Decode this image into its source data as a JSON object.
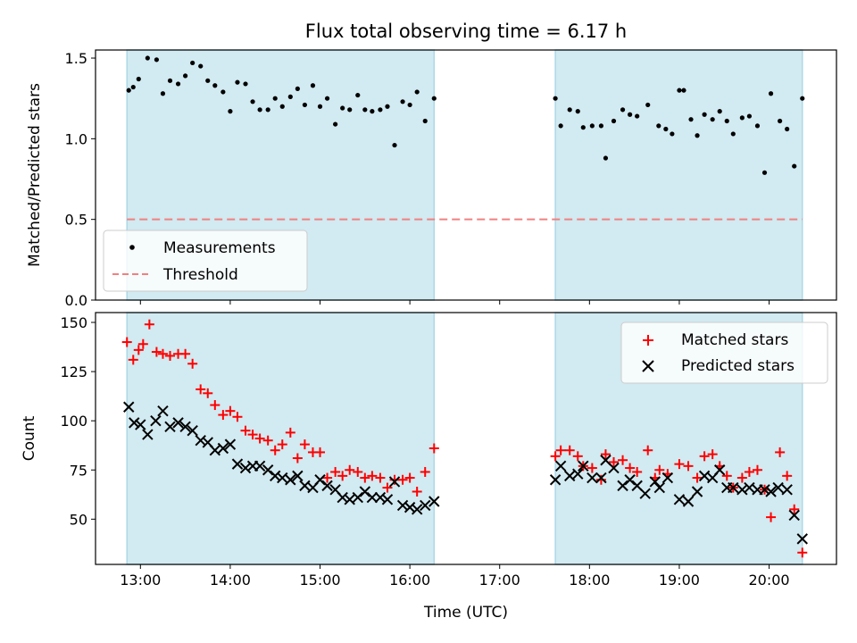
{
  "chart_data": {
    "title": "Flux total observing time = 6.17 h",
    "xlabel": "Time (UTC)",
    "x_unit": "hours UTC",
    "xlim": [
      12.5,
      20.75
    ],
    "x_tick_values": [
      13,
      14,
      15,
      16,
      17,
      18,
      19,
      20
    ],
    "x_tick_labels": [
      "13:00",
      "14:00",
      "15:00",
      "16:00",
      "17:00",
      "18:00",
      "19:00",
      "20:00"
    ],
    "observing_windows": [
      [
        12.85,
        16.27
      ],
      [
        17.62,
        20.37
      ]
    ],
    "window_color": "#add8e6",
    "panels": [
      {
        "type": "scatter",
        "ylabel": "Matched/Predicted stars",
        "ylim": [
          0,
          1.55
        ],
        "y_tick_values": [
          0,
          0.5,
          1.0,
          1.5
        ],
        "y_tick_labels": [
          "0.0",
          "0.5",
          "1.0",
          "1.5"
        ],
        "legend_position": "lower-left",
        "threshold": {
          "name": "Threshold",
          "value": 0.5,
          "color": "#f08080"
        },
        "series": [
          {
            "name": "Measurements",
            "color": "#000000",
            "marker": "dot",
            "x": [
              12.87,
              12.92,
              12.98,
              13.08,
              13.18,
              13.25,
              13.33,
              13.42,
              13.5,
              13.58,
              13.67,
              13.75,
              13.83,
              13.92,
              14.0,
              14.08,
              14.17,
              14.25,
              14.33,
              14.42,
              14.5,
              14.58,
              14.67,
              14.75,
              14.83,
              14.92,
              15.0,
              15.08,
              15.17,
              15.25,
              15.33,
              15.42,
              15.5,
              15.58,
              15.67,
              15.75,
              15.83,
              15.92,
              16.0,
              16.08,
              16.17,
              16.27,
              17.62,
              17.68,
              17.78,
              17.87,
              17.93,
              18.03,
              18.13,
              18.18,
              18.27,
              18.37,
              18.45,
              18.53,
              18.65,
              18.77,
              18.85,
              18.92,
              19.0,
              19.05,
              19.13,
              19.2,
              19.28,
              19.37,
              19.45,
              19.53,
              19.6,
              19.7,
              19.78,
              19.87,
              19.95,
              20.02,
              20.12,
              20.2,
              20.28,
              20.37
            ],
            "y": [
              1.3,
              1.32,
              1.37,
              1.5,
              1.49,
              1.28,
              1.36,
              1.34,
              1.39,
              1.47,
              1.45,
              1.36,
              1.33,
              1.29,
              1.17,
              1.35,
              1.34,
              1.23,
              1.18,
              1.18,
              1.25,
              1.2,
              1.26,
              1.31,
              1.21,
              1.33,
              1.2,
              1.25,
              1.09,
              1.19,
              1.18,
              1.27,
              1.18,
              1.17,
              1.18,
              1.2,
              0.96,
              1.23,
              1.21,
              1.29,
              1.11,
              1.25,
              1.25,
              1.08,
              1.18,
              1.17,
              1.07,
              1.08,
              1.08,
              0.88,
              1.11,
              1.18,
              1.15,
              1.14,
              1.21,
              1.08,
              1.06,
              1.03,
              1.3,
              1.3,
              1.12,
              1.02,
              1.15,
              1.12,
              1.17,
              1.11,
              1.03,
              1.13,
              1.14,
              1.08,
              0.79,
              1.28,
              1.11,
              1.06,
              0.83,
              1.25
            ]
          }
        ]
      },
      {
        "type": "scatter",
        "ylabel": "Count",
        "ylim": [
          27,
          155
        ],
        "y_tick_values": [
          50,
          75,
          100,
          125,
          150
        ],
        "y_tick_labels": [
          "50",
          "75",
          "100",
          "125",
          "150"
        ],
        "legend_position": "upper-right",
        "series": [
          {
            "name": "Matched stars",
            "color": "#ff0000",
            "marker": "plus",
            "x": [
              12.85,
              12.92,
              12.98,
              13.03,
              13.1,
              13.18,
              13.25,
              13.33,
              13.42,
              13.5,
              13.58,
              13.67,
              13.75,
              13.83,
              13.92,
              14.0,
              14.08,
              14.17,
              14.25,
              14.33,
              14.42,
              14.5,
              14.58,
              14.67,
              14.75,
              14.83,
              14.92,
              15.0,
              15.08,
              15.17,
              15.25,
              15.33,
              15.42,
              15.5,
              15.58,
              15.67,
              15.75,
              15.83,
              15.92,
              16.0,
              16.08,
              16.17,
              16.27,
              17.62,
              17.68,
              17.78,
              17.87,
              17.93,
              18.03,
              18.13,
              18.18,
              18.27,
              18.37,
              18.45,
              18.53,
              18.65,
              18.73,
              18.78,
              18.87,
              19.0,
              19.1,
              19.2,
              19.28,
              19.37,
              19.45,
              19.53,
              19.6,
              19.7,
              19.78,
              19.87,
              19.95,
              20.02,
              20.12,
              20.2,
              20.28,
              20.37
            ],
            "y": [
              140,
              131,
              136,
              139,
              149,
              135,
              134,
              133,
              134,
              134,
              129,
              116,
              114,
              108,
              103,
              105,
              102,
              95,
              93,
              91,
              90,
              85,
              88,
              94,
              81,
              88,
              84,
              84,
              71,
              74,
              72,
              75,
              74,
              71,
              72,
              71,
              66,
              70,
              70,
              71,
              64,
              74,
              86,
              82,
              85,
              85,
              82,
              77,
              76,
              70,
              83,
              79,
              80,
              76,
              74,
              85,
              71,
              75,
              73,
              78,
              77,
              71,
              82,
              83,
              77,
              72,
              66,
              71,
              74,
              75,
              65,
              51,
              84,
              72,
              55,
              33
            ]
          },
          {
            "name": "Predicted stars",
            "color": "#000000",
            "marker": "x",
            "x": [
              12.87,
              12.93,
              13.0,
              13.08,
              13.17,
              13.25,
              13.33,
              13.42,
              13.5,
              13.58,
              13.67,
              13.75,
              13.83,
              13.92,
              14.0,
              14.08,
              14.17,
              14.25,
              14.33,
              14.42,
              14.5,
              14.58,
              14.67,
              14.75,
              14.83,
              14.92,
              15.0,
              15.08,
              15.17,
              15.25,
              15.33,
              15.42,
              15.5,
              15.58,
              15.67,
              15.75,
              15.83,
              15.92,
              16.0,
              16.08,
              16.17,
              16.27,
              17.62,
              17.68,
              17.78,
              17.87,
              17.93,
              18.03,
              18.13,
              18.18,
              18.27,
              18.37,
              18.45,
              18.53,
              18.62,
              18.73,
              18.78,
              18.87,
              19.0,
              19.1,
              19.2,
              19.28,
              19.37,
              19.45,
              19.53,
              19.6,
              19.7,
              19.78,
              19.87,
              19.95,
              20.02,
              20.1,
              20.2,
              20.28,
              20.37
            ],
            "y": [
              107,
              99,
              98,
              93,
              100,
              105,
              97,
              99,
              97,
              95,
              90,
              89,
              85,
              86,
              88,
              78,
              76,
              77,
              77,
              75,
              72,
              71,
              70,
              72,
              67,
              66,
              70,
              67,
              65,
              61,
              60,
              61,
              64,
              61,
              61,
              60,
              69,
              57,
              56,
              55,
              57,
              59,
              70,
              77,
              72,
              73,
              77,
              71,
              71,
              80,
              76,
              67,
              70,
              67,
              63,
              69,
              66,
              71,
              60,
              59,
              64,
              72,
              71,
              75,
              66,
              66,
              65,
              66,
              65,
              65,
              64,
              66,
              65,
              52,
              40
            ]
          }
        ]
      }
    ]
  }
}
